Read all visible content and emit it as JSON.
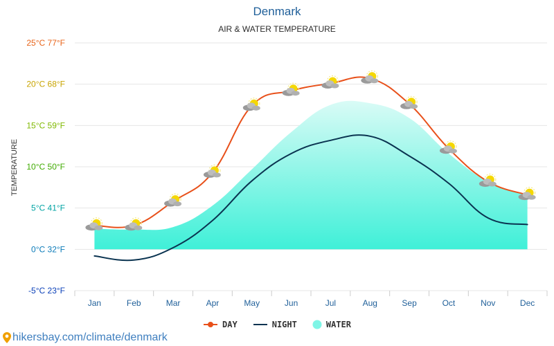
{
  "chart_data": {
    "type": "line",
    "title": "Denmark",
    "subtitle": "AIR & WATER TEMPERATURE",
    "ylabel": "TEMPERATURE",
    "categories": [
      "Jan",
      "Feb",
      "Mar",
      "Apr",
      "May",
      "Jun",
      "Jul",
      "Aug",
      "Sep",
      "Oct",
      "Nov",
      "Dec"
    ],
    "ylim": [
      -5,
      25
    ],
    "yticks": [
      {
        "value": 25,
        "label": "25°C 77°F",
        "color": "#e8641a"
      },
      {
        "value": 20,
        "label": "20°C 68°F",
        "color": "#c8a400"
      },
      {
        "value": 15,
        "label": "15°C 59°F",
        "color": "#7fb800"
      },
      {
        "value": 10,
        "label": "10°C 50°F",
        "color": "#3faa00"
      },
      {
        "value": 5,
        "label": "5°C 41°F",
        "color": "#00a3a3"
      },
      {
        "value": 0,
        "label": "0°C 32°F",
        "color": "#0a7ab8"
      },
      {
        "value": -5,
        "label": "-5°C 23°F",
        "color": "#0a3fb8"
      }
    ],
    "grid": true,
    "legend_position": "bottom",
    "series": [
      {
        "name": "DAY",
        "style": "line",
        "color": "#e8501a",
        "values": [
          2.9,
          2.9,
          5.8,
          9.3,
          17.4,
          19.2,
          20.1,
          20.7,
          17.6,
          12.2,
          8.2,
          6.6
        ]
      },
      {
        "name": "NIGHT",
        "style": "line",
        "color": "#0a3350",
        "values": [
          -0.8,
          -1.3,
          0.2,
          3.5,
          8.3,
          11.6,
          13.2,
          13.7,
          11.3,
          8.0,
          3.8,
          3.0
        ]
      },
      {
        "name": "WATER",
        "style": "area",
        "color": "#7ff5e6",
        "values": [
          2.5,
          2.4,
          2.7,
          5.3,
          9.7,
          14.2,
          17.5,
          17.7,
          15.9,
          11.6,
          8.2,
          6.6
        ]
      }
    ]
  },
  "legend": {
    "day": "DAY",
    "night": "NIGHT",
    "water": "WATER"
  },
  "footer": {
    "text": "hikersbay.com/climate/denmark"
  },
  "colors": {
    "title": "#1f5f99",
    "footer": "#3f7fbf",
    "grid": "#e6e6e6"
  }
}
